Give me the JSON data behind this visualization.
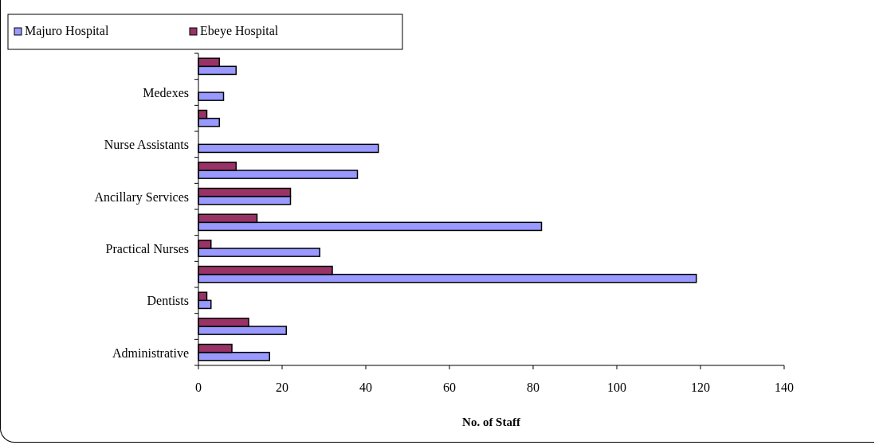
{
  "chart_data": {
    "type": "bar",
    "orientation": "horizontal",
    "xlabel": "No. of Staff",
    "categories": [
      null,
      "Medexes",
      null,
      "Nurse Assistants",
      null,
      "Ancillary Services",
      null,
      "Practical Nurses",
      null,
      "Dentists",
      null,
      "Administrative"
    ],
    "series": [
      {
        "name": "Majuro Hospital",
        "color": "#9999ff",
        "values": [
          9,
          6,
          5,
          43,
          38,
          22,
          82,
          29,
          119,
          3,
          21,
          17
        ]
      },
      {
        "name": "Ebeye Hospital",
        "color": "#993366",
        "values": [
          5,
          0,
          2,
          0,
          9,
          22,
          14,
          3,
          32,
          2,
          12,
          8
        ]
      }
    ],
    "xlim": [
      0,
      140
    ],
    "xticks": [
      0,
      20,
      40,
      60,
      80,
      100,
      120,
      140
    ],
    "legend": "top left",
    "grid": false
  }
}
